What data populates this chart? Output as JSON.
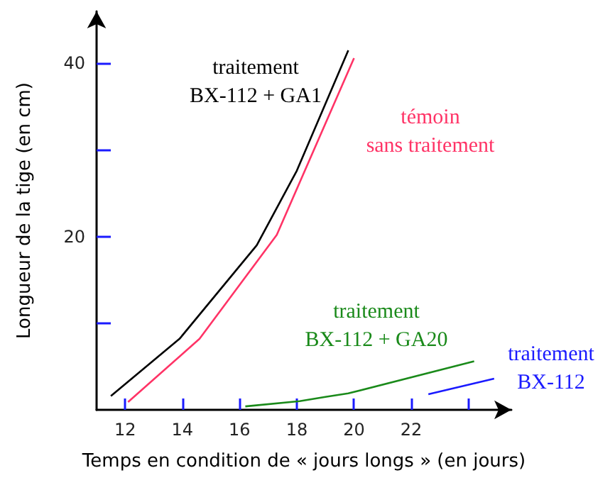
{
  "chart_data": {
    "type": "line",
    "xlabel": "Temps en condition de « jours longs » (en jours)",
    "ylabel": "Longueur de la tige (en cm)",
    "xlim": [
      11,
      25.5
    ],
    "ylim": [
      0,
      46
    ],
    "xticks": [
      12,
      14,
      16,
      18,
      20,
      22,
      {
        "value": 24,
        "label": null
      }
    ],
    "yticks": [
      {
        "value": 10,
        "label": null
      },
      20,
      {
        "value": 30,
        "label": null
      },
      40
    ],
    "grid": false,
    "legend": false,
    "marker": "none",
    "line_style": "solid",
    "series": [
      {
        "name": "traitement\nBX-112 + GA1",
        "color": "#000000",
        "x": [
          11.5,
          13.9,
          16.6,
          18.0,
          19.8
        ],
        "values": [
          1.6,
          8.2,
          19,
          27.6,
          41.5
        ]
      },
      {
        "name": "témoin\nsans traitement",
        "color": "#ff3366",
        "x": [
          12.1,
          14.6,
          17.3,
          20.0
        ],
        "values": [
          0.9,
          8.2,
          20.2,
          40.6
        ]
      },
      {
        "name": "traitement\nBX-112 + GA20",
        "color": "#1a8a1a",
        "x": [
          16.2,
          18.1,
          19.0,
          19.8,
          24.2
        ],
        "values": [
          0.4,
          1.0,
          1.5,
          1.9,
          5.6
        ]
      },
      {
        "name": "traitement\nBX-112",
        "color": "#1a1aff",
        "x": [
          22.6,
          24.9
        ],
        "values": [
          1.8,
          3.6
        ]
      }
    ]
  }
}
